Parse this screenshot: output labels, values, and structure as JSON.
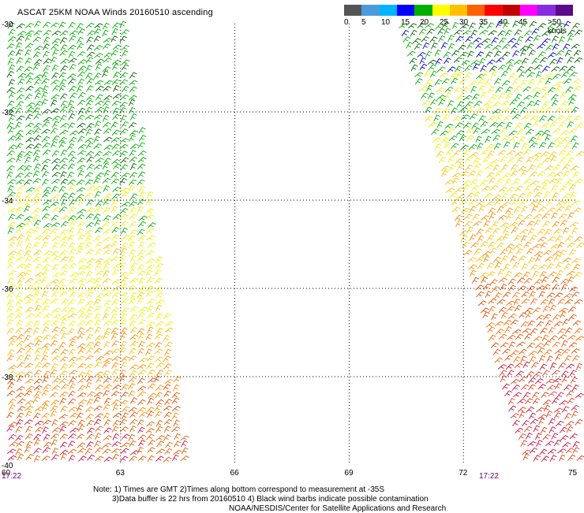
{
  "title": "ASCAT 25KM NOAA Winds 20160510 ascending",
  "legend": {
    "colors": [
      "#555555",
      "#4a9bdc",
      "#00b4ff",
      "#0000ff",
      "#00b000",
      "#ffff00",
      "#ffc000",
      "#ff6000",
      "#ff0000",
      "#c00000",
      "#ff00ff",
      "#8a2be2",
      "#5a0a8a"
    ],
    "labels": [
      "0",
      "5",
      "10",
      "15",
      "20",
      "25",
      "30",
      "35",
      "40",
      "45",
      ">50 knots"
    ]
  },
  "axes": {
    "lat_labels": [
      "-30",
      "-32",
      "-34",
      "-36",
      "-38",
      "-40"
    ],
    "lon_labels": [
      "60",
      "63",
      "66",
      "69",
      "72",
      "75"
    ]
  },
  "times": {
    "left": "17:22",
    "right": "17:22"
  },
  "notes": {
    "line1": "Note: 1) Times are GMT 2)Times along bottom correspond to measurement at -35S",
    "line2": "3)Data buffer is 22 hrs from 20160510 4) Black wind barbs indicate possible contamination",
    "line3": "NOAA/NESDIS/Center for Satellite Applications and Research"
  }
}
